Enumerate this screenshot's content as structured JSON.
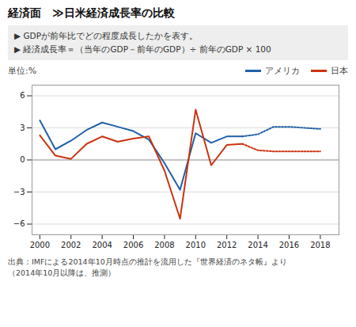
{
  "chart_data": {
    "type": "line",
    "title": "経済面　≫日米経済成長率の比較",
    "subtitle": [
      "▶ GDPが前年比でどの程度成長したかを表す。",
      "▶ 経済成長率＝（当年のGDP－前年のGDP）÷ 前年のGDP × 100"
    ],
    "ylabel": "単位:%",
    "annotations": [
      "出典：IMFによる2014年10月時点の推計を流用した『世界経済のネタ帳』より",
      "（2014年10月以降は、推測）"
    ],
    "x": [
      2000,
      2001,
      2002,
      2003,
      2004,
      2005,
      2006,
      2007,
      2008,
      2009,
      2010,
      2011,
      2012,
      2013,
      2014,
      2015,
      2016,
      2017,
      2018
    ],
    "series": [
      {
        "name": "アメリカ",
        "color": "#2060a8",
        "line_style": "solid",
        "values": [
          3.7,
          1.0,
          1.8,
          2.8,
          3.5,
          3.1,
          2.7,
          1.9,
          -0.3,
          -2.8,
          2.5,
          1.6,
          2.2,
          2.2,
          null,
          null,
          null,
          null,
          null
        ]
      },
      {
        "name": "アメリカ",
        "color": "#2060a8",
        "line_style": "dotted",
        "values": [
          null,
          null,
          null,
          null,
          null,
          null,
          null,
          null,
          null,
          null,
          null,
          null,
          null,
          2.2,
          2.4,
          3.1,
          3.1,
          3.0,
          2.9
        ]
      },
      {
        "name": "日本",
        "color": "#cc3311",
        "line_style": "solid",
        "values": [
          2.3,
          0.4,
          0.1,
          1.5,
          2.2,
          1.7,
          2.0,
          2.2,
          -1.0,
          -5.5,
          4.7,
          -0.5,
          1.4,
          1.5,
          null,
          null,
          null,
          null,
          null
        ]
      },
      {
        "name": "日本",
        "color": "#cc3311",
        "line_style": "dotted",
        "values": [
          null,
          null,
          null,
          null,
          null,
          null,
          null,
          null,
          null,
          null,
          null,
          null,
          null,
          1.5,
          0.9,
          0.8,
          0.8,
          0.8,
          0.8
        ]
      }
    ],
    "xlim": [
      1999.5,
      2019.2
    ],
    "ylim": [
      -7,
      7
    ],
    "xticks": [
      2000,
      2002,
      2004,
      2006,
      2008,
      2010,
      2012,
      2014,
      2016,
      2018
    ],
    "yticks": [
      -6,
      -3,
      0,
      3,
      6
    ],
    "grid": true,
    "legend": "top-right"
  }
}
